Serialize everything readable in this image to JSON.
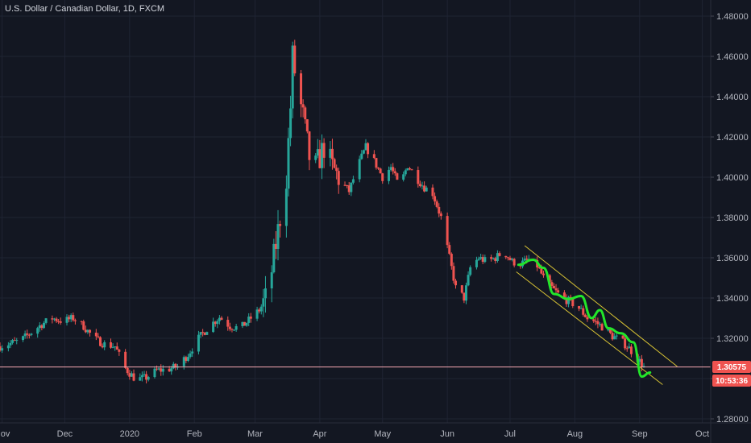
{
  "header": {
    "title": "U.S. Dollar / Canadian Dollar, 1D, FXCM"
  },
  "colors": {
    "background": "#131722",
    "grid": "#1f2433",
    "up": "#26a69a",
    "down": "#ef5350",
    "drawing": "#22e62a",
    "channel": "#d7c234",
    "price_line": "#f7a9b3",
    "badge": "#ef5350"
  },
  "price_badge": {
    "value": "1.30575",
    "countdown": "10:53:36"
  },
  "chart_data": {
    "type": "candlestick",
    "title": "U.S. Dollar / Canadian Dollar, 1D, FXCM",
    "xlabel": "",
    "ylabel": "",
    "ylim": [
      1.278,
      1.488
    ],
    "xlim": [
      "2019-10-31",
      "2020-10-05"
    ],
    "grid": true,
    "y_ticks": [
      "1.48000",
      "1.46000",
      "1.44000",
      "1.42000",
      "1.40000",
      "1.38000",
      "1.36000",
      "1.34000",
      "1.32000",
      "1.30000",
      "1.28000"
    ],
    "x_ticks": [
      {
        "label": "Nov",
        "date": "2019-11-01"
      },
      {
        "label": "Dec",
        "date": "2019-12-01"
      },
      {
        "label": "2020",
        "date": "2020-01-01"
      },
      {
        "label": "Feb",
        "date": "2020-02-01"
      },
      {
        "label": "Mar",
        "date": "2020-03-01"
      },
      {
        "label": "Apr",
        "date": "2020-04-01"
      },
      {
        "label": "May",
        "date": "2020-05-01"
      },
      {
        "label": "Jun",
        "date": "2020-06-01"
      },
      {
        "label": "Jul",
        "date": "2020-07-01"
      },
      {
        "label": "Aug",
        "date": "2020-08-01"
      },
      {
        "label": "Sep",
        "date": "2020-09-01"
      },
      {
        "label": "Oct",
        "date": "2020-10-01"
      }
    ],
    "close_series": [
      [
        "2019-10-31",
        1.316
      ],
      [
        "2019-11-05",
        1.3175
      ],
      [
        "2019-11-10",
        1.319
      ],
      [
        "2019-11-15",
        1.323
      ],
      [
        "2019-11-20",
        1.327
      ],
      [
        "2019-11-25",
        1.33
      ],
      [
        "2019-11-30",
        1.3285
      ],
      [
        "2019-12-05",
        1.33
      ],
      [
        "2019-12-10",
        1.326
      ],
      [
        "2019-12-15",
        1.32
      ],
      [
        "2019-12-20",
        1.317
      ],
      [
        "2019-12-25",
        1.316
      ],
      [
        "2019-12-30",
        1.305
      ],
      [
        "2020-01-04",
        1.2995
      ],
      [
        "2020-01-09",
        1.3005
      ],
      [
        "2020-01-14",
        1.304
      ],
      [
        "2020-01-19",
        1.3045
      ],
      [
        "2020-01-24",
        1.306
      ],
      [
        "2020-01-29",
        1.312
      ],
      [
        "2020-02-03",
        1.32
      ],
      [
        "2020-02-08",
        1.326
      ],
      [
        "2020-02-13",
        1.3305
      ],
      [
        "2020-02-18",
        1.326
      ],
      [
        "2020-02-23",
        1.325
      ],
      [
        "2020-02-28",
        1.33
      ],
      [
        "2020-03-03",
        1.334
      ],
      [
        "2020-03-07",
        1.341
      ],
      [
        "2020-03-10",
        1.36
      ],
      [
        "2020-03-13",
        1.38
      ],
      [
        "2020-03-16",
        1.4
      ],
      [
        "2020-03-18",
        1.435
      ],
      [
        "2020-03-19",
        1.46
      ],
      [
        "2020-03-21",
        1.445
      ],
      [
        "2020-03-24",
        1.43
      ],
      [
        "2020-03-27",
        1.41
      ],
      [
        "2020-03-30",
        1.405
      ],
      [
        "2020-04-03",
        1.415
      ],
      [
        "2020-04-07",
        1.405
      ],
      [
        "2020-04-11",
        1.398
      ],
      [
        "2020-04-15",
        1.393
      ],
      [
        "2020-04-19",
        1.405
      ],
      [
        "2020-04-23",
        1.415
      ],
      [
        "2020-04-27",
        1.408
      ],
      [
        "2020-05-01",
        1.4
      ],
      [
        "2020-05-05",
        1.405
      ],
      [
        "2020-05-09",
        1.395
      ],
      [
        "2020-05-13",
        1.406
      ],
      [
        "2020-05-17",
        1.4
      ],
      [
        "2020-05-21",
        1.395
      ],
      [
        "2020-05-25",
        1.392
      ],
      [
        "2020-05-29",
        1.38
      ],
      [
        "2020-06-02",
        1.36
      ],
      [
        "2020-06-05",
        1.345
      ],
      [
        "2020-06-09",
        1.34
      ],
      [
        "2020-06-12",
        1.355
      ],
      [
        "2020-06-16",
        1.36
      ],
      [
        "2020-06-20",
        1.358
      ],
      [
        "2020-06-24",
        1.36
      ],
      [
        "2020-06-28",
        1.363
      ],
      [
        "2020-07-02",
        1.358
      ],
      [
        "2020-07-06",
        1.357
      ],
      [
        "2020-07-10",
        1.359
      ],
      [
        "2020-07-14",
        1.356
      ],
      [
        "2020-07-18",
        1.348
      ],
      [
        "2020-07-22",
        1.344
      ],
      [
        "2020-07-26",
        1.34
      ],
      [
        "2020-07-30",
        1.338
      ],
      [
        "2020-08-03",
        1.335
      ],
      [
        "2020-08-07",
        1.33
      ],
      [
        "2020-08-11",
        1.328
      ],
      [
        "2020-08-15",
        1.325
      ],
      [
        "2020-08-19",
        1.321
      ],
      [
        "2020-08-23",
        1.319
      ],
      [
        "2020-08-27",
        1.315
      ],
      [
        "2020-08-31",
        1.31
      ],
      [
        "2020-09-03",
        1.3057
      ]
    ],
    "annotations": {
      "channel_upper": [
        [
          "2020-07-08",
          1.366
        ],
        [
          "2020-09-19",
          1.306
        ]
      ],
      "channel_lower": [
        [
          "2020-07-04",
          1.353
        ],
        [
          "2020-09-12",
          1.297
        ]
      ],
      "hand_drawn_path": [
        [
          "2020-07-05",
          1.3565
        ],
        [
          "2020-07-12",
          1.359
        ],
        [
          "2020-07-17",
          1.355
        ],
        [
          "2020-07-22",
          1.342
        ],
        [
          "2020-07-29",
          1.3395
        ],
        [
          "2020-08-04",
          1.341
        ],
        [
          "2020-08-09",
          1.33
        ],
        [
          "2020-08-13",
          1.334
        ],
        [
          "2020-08-17",
          1.325
        ],
        [
          "2020-08-23",
          1.3225
        ],
        [
          "2020-08-29",
          1.318
        ],
        [
          "2020-09-02",
          1.301
        ],
        [
          "2020-09-06",
          1.303
        ]
      ],
      "price_line": 1.30575
    }
  }
}
